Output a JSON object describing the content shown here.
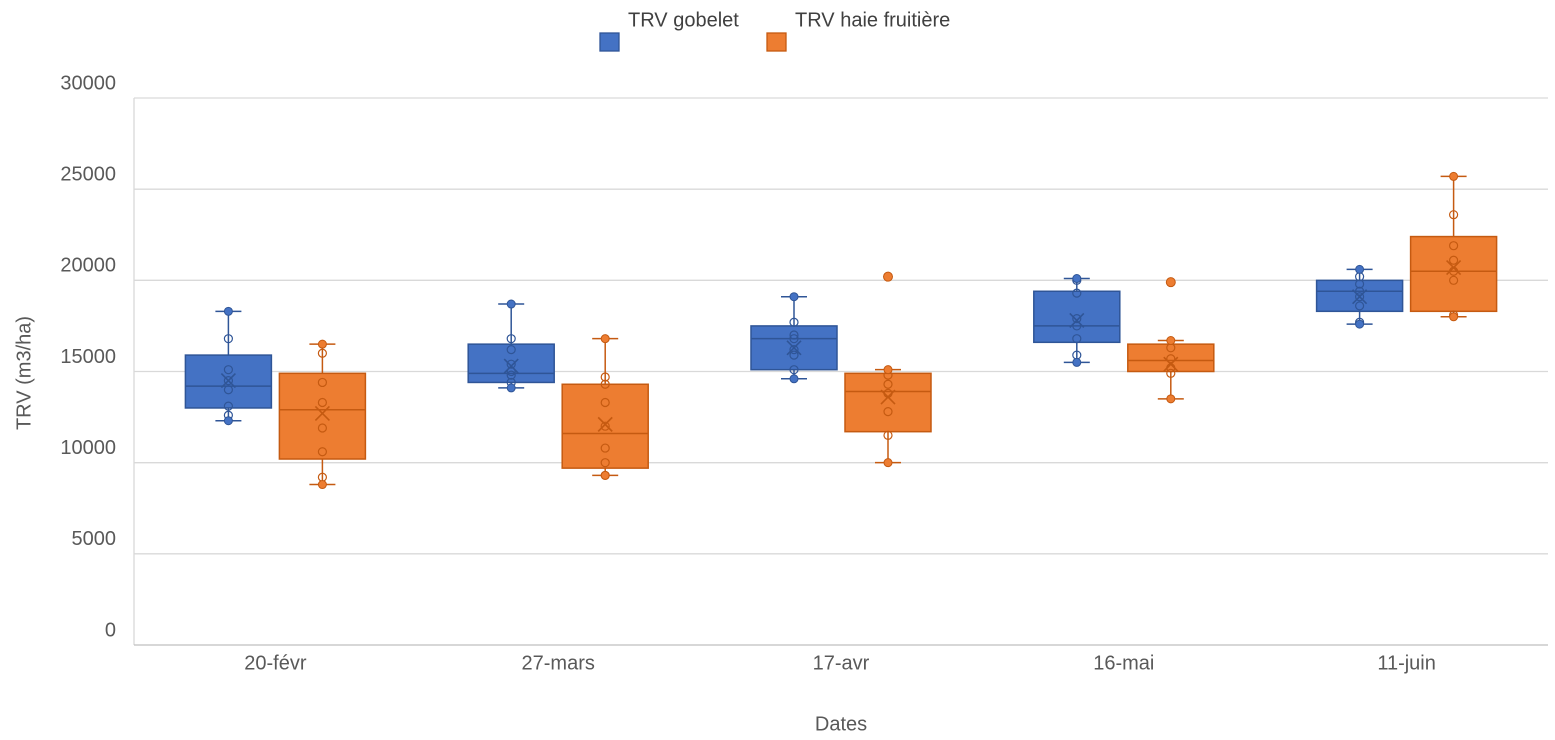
{
  "chart_data": {
    "type": "boxplot",
    "title": "",
    "xlabel": "Dates",
    "ylabel": "TRV (m3/ha)",
    "ylim": [
      0,
      30000
    ],
    "yticks": [
      0,
      5000,
      10000,
      15000,
      20000,
      25000,
      30000
    ],
    "grid": true,
    "legend_position": "top",
    "categories": [
      "20-févr",
      "27-mars",
      "17-avr",
      "16-mai",
      "11-juin"
    ],
    "series": [
      {
        "name": "TRV gobelet",
        "color": "#4472C4",
        "border_color": "#2F5597",
        "boxes": [
          {
            "min": 12300,
            "q1": 13000,
            "median": 14200,
            "q3": 15900,
            "max": 18300,
            "mean": 14500,
            "outliers": [],
            "points": [
              12600,
              13100,
              14000,
              14500,
              15100,
              16800
            ]
          },
          {
            "min": 14100,
            "q1": 14400,
            "median": 14900,
            "q3": 16500,
            "max": 18700,
            "mean": 15300,
            "outliers": [],
            "points": [
              14400,
              14800,
              15000,
              15400,
              16200,
              16800
            ]
          },
          {
            "min": 14600,
            "q1": 15100,
            "median": 16800,
            "q3": 17500,
            "max": 19100,
            "mean": 16300,
            "outliers": [],
            "points": [
              15100,
              15900,
              16200,
              16800,
              17000,
              17700
            ]
          },
          {
            "min": 15500,
            "q1": 16600,
            "median": 17500,
            "q3": 19400,
            "max": 20100,
            "mean": 17800,
            "outliers": [],
            "points": [
              15900,
              16800,
              17500,
              17900,
              19300,
              20000
            ]
          },
          {
            "min": 17600,
            "q1": 18300,
            "median": 19400,
            "q3": 20000,
            "max": 20600,
            "mean": 19100,
            "outliers": [],
            "points": [
              17700,
              18600,
              19100,
              19400,
              19800,
              20200
            ]
          }
        ]
      },
      {
        "name": "TRV haie fruitière",
        "color": "#ED7D31",
        "border_color": "#C55A11",
        "boxes": [
          {
            "min": 8800,
            "q1": 10200,
            "median": 12900,
            "q3": 14900,
            "max": 16500,
            "mean": 12700,
            "outliers": [],
            "points": [
              9200,
              10600,
              11900,
              13300,
              14400,
              16000
            ]
          },
          {
            "min": 9300,
            "q1": 9700,
            "median": 11600,
            "q3": 14300,
            "max": 16800,
            "mean": 12100,
            "outliers": [],
            "points": [
              9300,
              10000,
              10800,
              12000,
              13300,
              14300,
              14700
            ]
          },
          {
            "min": 10000,
            "q1": 11700,
            "median": 13900,
            "q3": 14900,
            "max": 15100,
            "mean": 13600,
            "outliers": [
              20200
            ],
            "points": [
              11500,
              12800,
              13800,
              14300,
              14800
            ]
          },
          {
            "min": 13500,
            "q1": 15000,
            "median": 15600,
            "q3": 16500,
            "max": 16700,
            "mean": 15400,
            "outliers": [
              19900
            ],
            "points": [
              14900,
              15200,
              15700,
              16300
            ]
          },
          {
            "min": 18000,
            "q1": 18300,
            "median": 20500,
            "q3": 22400,
            "max": 25700,
            "mean": 20700,
            "outliers": [],
            "points": [
              18100,
              20000,
              20500,
              21100,
              21900,
              23600
            ]
          }
        ]
      }
    ]
  }
}
